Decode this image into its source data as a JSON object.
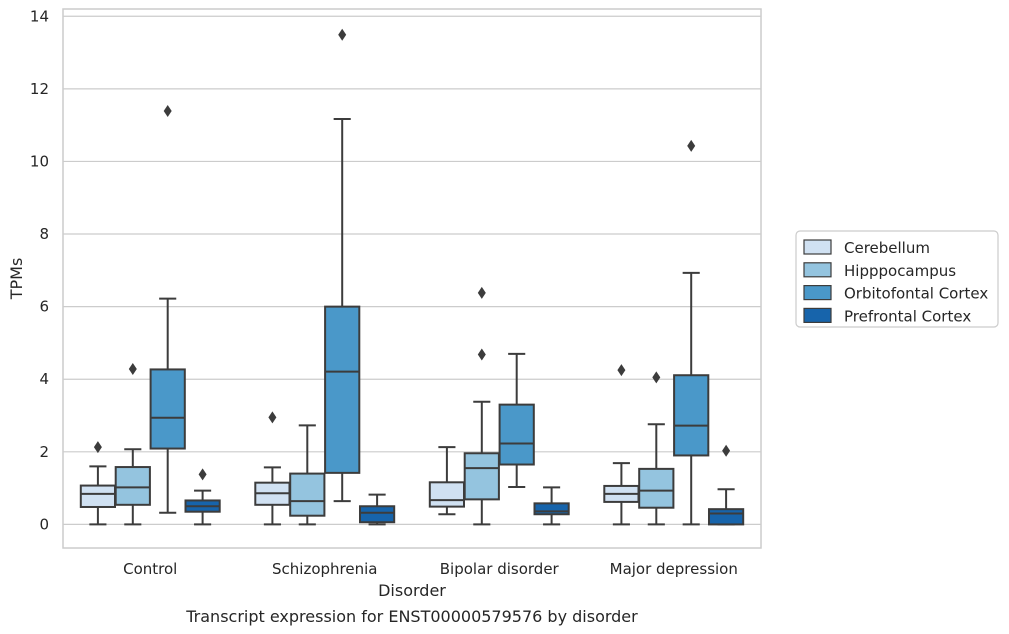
{
  "chart_data": {
    "type": "box",
    "title": "",
    "caption": "Transcript expression for ENST00000579576 by disorder",
    "xlabel": "Disorder",
    "ylabel": "TPMs",
    "ylim": [
      -0.65,
      14.2
    ],
    "yticks": [
      0,
      2,
      4,
      6,
      8,
      10,
      12,
      14
    ],
    "grid": "horizontal",
    "legend_position": "right",
    "categories": [
      "Control",
      "Schizophrenia",
      "Bipolar disorder",
      "Major depression"
    ],
    "series": [
      {
        "name": "Cerebellum",
        "color": "#d0e1f2",
        "boxes": [
          {
            "whislo": 0.0,
            "q1": 0.48,
            "med": 0.84,
            "q3": 1.07,
            "whishi": 1.6,
            "fliers": [
              2.13
            ]
          },
          {
            "whislo": 0.0,
            "q1": 0.54,
            "med": 0.86,
            "q3": 1.15,
            "whishi": 1.57,
            "fliers": [
              2.95
            ]
          },
          {
            "whislo": 0.28,
            "q1": 0.49,
            "med": 0.67,
            "q3": 1.16,
            "whishi": 2.13,
            "fliers": []
          },
          {
            "whislo": 0.0,
            "q1": 0.62,
            "med": 0.84,
            "q3": 1.06,
            "whishi": 1.69,
            "fliers": [
              4.25
            ]
          }
        ]
      },
      {
        "name": "Hipppocampus",
        "color": "#94c4df",
        "boxes": [
          {
            "whislo": 0.0,
            "q1": 0.54,
            "med": 1.02,
            "q3": 1.58,
            "whishi": 2.07,
            "fliers": [
              4.28
            ]
          },
          {
            "whislo": 0.0,
            "q1": 0.24,
            "med": 0.64,
            "q3": 1.4,
            "whishi": 2.73,
            "fliers": []
          },
          {
            "whislo": 0.0,
            "q1": 0.69,
            "med": 1.55,
            "q3": 1.96,
            "whishi": 3.38,
            "fliers": [
              4.68,
              6.38
            ]
          },
          {
            "whislo": 0.0,
            "q1": 0.46,
            "med": 0.93,
            "q3": 1.53,
            "whishi": 2.76,
            "fliers": [
              4.05
            ]
          }
        ]
      },
      {
        "name": "Orbitofontal Cortex",
        "color": "#4a98c9",
        "boxes": [
          {
            "whislo": 0.32,
            "q1": 2.09,
            "med": 2.94,
            "q3": 4.27,
            "whishi": 6.22,
            "fliers": [
              11.39
            ]
          },
          {
            "whislo": 0.64,
            "q1": 1.42,
            "med": 4.21,
            "q3": 6.0,
            "whishi": 11.17,
            "fliers": [
              13.49
            ]
          },
          {
            "whislo": 1.03,
            "q1": 1.65,
            "med": 2.23,
            "q3": 3.3,
            "whishi": 4.7,
            "fliers": []
          },
          {
            "whislo": 0.0,
            "q1": 1.9,
            "med": 2.72,
            "q3": 4.11,
            "whishi": 6.93,
            "fliers": [
              10.43
            ]
          }
        ]
      },
      {
        "name": "Prefrontal Cortex",
        "color": "#1764ab",
        "boxes": [
          {
            "whislo": 0.0,
            "q1": 0.35,
            "med": 0.5,
            "q3": 0.66,
            "whishi": 0.93,
            "fliers": [
              1.38
            ]
          },
          {
            "whislo": 0.0,
            "q1": 0.06,
            "med": 0.32,
            "q3": 0.5,
            "whishi": 0.82,
            "fliers": []
          },
          {
            "whislo": 0.0,
            "q1": 0.28,
            "med": 0.36,
            "q3": 0.58,
            "whishi": 1.02,
            "fliers": []
          },
          {
            "whislo": 0.0,
            "q1": 0.0,
            "med": 0.3,
            "q3": 0.42,
            "whishi": 0.97,
            "fliers": [
              2.03
            ]
          }
        ]
      }
    ]
  }
}
